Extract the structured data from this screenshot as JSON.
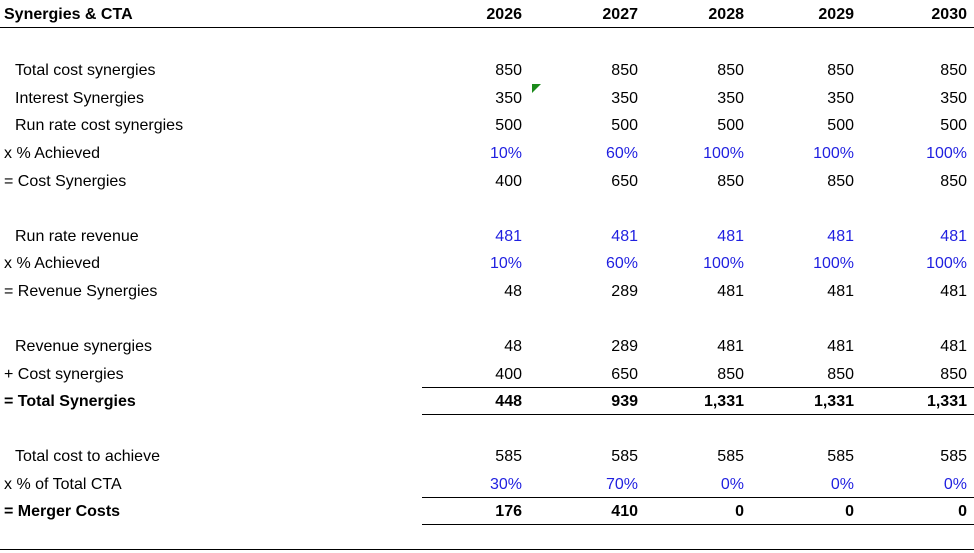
{
  "header": {
    "title": "Synergies & CTA",
    "years": [
      "2026",
      "2027",
      "2028",
      "2029",
      "2030"
    ]
  },
  "rows": {
    "total_cost_synergies": {
      "label": "Total cost synergies",
      "values": [
        "850",
        "850",
        "850",
        "850",
        "850"
      ]
    },
    "interest_synergies": {
      "label": "Interest Synergies",
      "values": [
        "350",
        "350",
        "350",
        "350",
        "350"
      ]
    },
    "run_rate_cost_synergies": {
      "label": "Run rate cost synergies",
      "values": [
        "500",
        "500",
        "500",
        "500",
        "500"
      ]
    },
    "pct_achieved_cost": {
      "label": "x % Achieved",
      "values": [
        "10%",
        "60%",
        "100%",
        "100%",
        "100%"
      ]
    },
    "cost_synergies": {
      "label": "= Cost Synergies",
      "values": [
        "400",
        "650",
        "850",
        "850",
        "850"
      ]
    },
    "run_rate_revenue": {
      "label": "Run rate revenue",
      "values": [
        "481",
        "481",
        "481",
        "481",
        "481"
      ]
    },
    "pct_achieved_revenue": {
      "label": "x % Achieved",
      "values": [
        "10%",
        "60%",
        "100%",
        "100%",
        "100%"
      ]
    },
    "revenue_synergies": {
      "label": "= Revenue Synergies",
      "values": [
        "48",
        "289",
        "481",
        "481",
        "481"
      ]
    },
    "revenue_synergies_2": {
      "label": "Revenue synergies",
      "values": [
        "48",
        "289",
        "481",
        "481",
        "481"
      ]
    },
    "plus_cost_synergies": {
      "label": "+ Cost synergies",
      "values": [
        "400",
        "650",
        "850",
        "850",
        "850"
      ]
    },
    "total_synergies": {
      "label": "= Total Synergies",
      "values": [
        "448",
        "939",
        "1,331",
        "1,331",
        "1,331"
      ]
    },
    "total_cost_to_achieve": {
      "label": "Total cost to achieve",
      "values": [
        "585",
        "585",
        "585",
        "585",
        "585"
      ]
    },
    "pct_of_total_cta": {
      "label": "x % of Total CTA",
      "values": [
        "30%",
        "70%",
        "0%",
        "0%",
        "0%"
      ]
    },
    "merger_costs": {
      "label": "= Merger Costs",
      "values": [
        "176",
        "410",
        "0",
        "0",
        "0"
      ]
    }
  },
  "colors": {
    "input_blue": "#1f1fe0",
    "comment_marker": "#1a8a1a",
    "text": "#000000"
  }
}
